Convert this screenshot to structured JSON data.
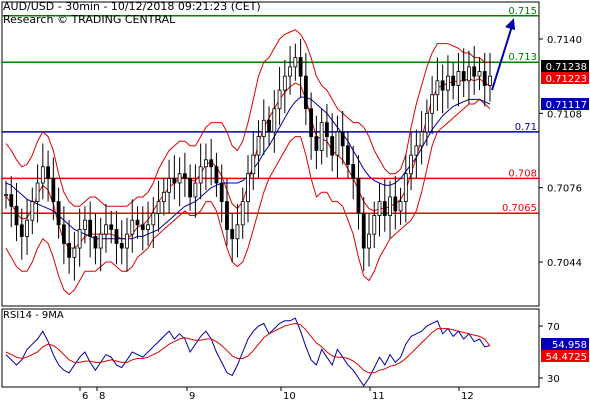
{
  "header": {
    "title": "AUD/USD - 30min - 10/12/2018 09:21:23 (CET)",
    "subtitle": "Research © TRADING CENTRAL"
  },
  "rsi_panel": {
    "title": "RSI14 - 9MA"
  },
  "colors": {
    "resistance": "#008000",
    "pivot": "#0000aa",
    "support": "#ee0000",
    "bollinger": "#dd0000",
    "moving_average": "#0000aa",
    "candles": "#000000",
    "arrow": "#0000aa",
    "rsi_line": "#0000aa",
    "rsi_ma": "#dd0000"
  },
  "chart_data": [
    {
      "type": "candlestick",
      "title": "AUD/USD - 30min - 10/12/2018 09:21:23 (CET)",
      "y_ticks": [
        "0.7140",
        "0.7108",
        "0.7076",
        "0.7044"
      ],
      "x_ticks": [
        "6",
        "8",
        "9",
        "10",
        "11",
        "12"
      ],
      "levels": [
        {
          "value": 0.715,
          "label": "0.715",
          "role": "resistance",
          "color": "#008000"
        },
        {
          "value": 0.713,
          "label": "0.713",
          "role": "resistance",
          "color": "#008000"
        },
        {
          "value": 0.71,
          "label": "0.71",
          "role": "pivot",
          "color": "#0000aa"
        },
        {
          "value": 0.708,
          "label": "0.708",
          "role": "support",
          "color": "#ee0000"
        },
        {
          "value": 0.7065,
          "label": "0.7065",
          "role": "support",
          "color": "#ee0000"
        }
      ],
      "price_tags": [
        {
          "value": 0.71238,
          "label": "0.71238",
          "bg": "#000000",
          "fg": "#ffffff"
        },
        {
          "value": 0.71223,
          "label": "0.71223",
          "bg": "#ee0000",
          "fg": "#ffffff"
        },
        {
          "value": 0.71117,
          "label": "0.71117",
          "bg": "#0000aa",
          "fg": "#ffffff"
        }
      ],
      "forecast_arrow": {
        "from": 0.7118,
        "to": 0.7149
      },
      "close_series": [
        0.7073,
        0.7068,
        0.706,
        0.7055,
        0.7062,
        0.707,
        0.7078,
        0.7085,
        0.708,
        0.707,
        0.706,
        0.7052,
        0.7046,
        0.705,
        0.7058,
        0.7062,
        0.7055,
        0.705,
        0.7056,
        0.706,
        0.7058,
        0.7052,
        0.705,
        0.7056,
        0.7062,
        0.706,
        0.7058,
        0.706,
        0.7065,
        0.707,
        0.7074,
        0.708,
        0.7078,
        0.7082,
        0.708,
        0.7072,
        0.7078,
        0.7085,
        0.7088,
        0.7085,
        0.7078,
        0.707,
        0.7058,
        0.7054,
        0.706,
        0.707,
        0.7082,
        0.709,
        0.7098,
        0.7105,
        0.71,
        0.711,
        0.7118,
        0.7124,
        0.7128,
        0.7132,
        0.7124,
        0.711,
        0.7098,
        0.7092,
        0.7104,
        0.7098,
        0.709,
        0.71,
        0.7094,
        0.7086,
        0.708,
        0.7065,
        0.705,
        0.7056,
        0.7064,
        0.707,
        0.7064,
        0.7072,
        0.7066,
        0.707,
        0.7082,
        0.709,
        0.7094,
        0.71,
        0.7108,
        0.7116,
        0.7122,
        0.7118,
        0.7124,
        0.712,
        0.7126,
        0.7122,
        0.7128,
        0.7124,
        0.7126,
        0.712,
        0.7124
      ],
      "bollinger_upper": [
        0.7095,
        0.7092,
        0.7088,
        0.7085,
        0.7086,
        0.709,
        0.7096,
        0.71,
        0.7098,
        0.7092,
        0.7082,
        0.7074,
        0.707,
        0.7068,
        0.7068,
        0.707,
        0.7072,
        0.7072,
        0.707,
        0.7068,
        0.7068,
        0.7068,
        0.7068,
        0.7068,
        0.707,
        0.7072,
        0.7072,
        0.7074,
        0.7078,
        0.7084,
        0.7088,
        0.7092,
        0.7094,
        0.7096,
        0.7096,
        0.7094,
        0.7094,
        0.7098,
        0.7102,
        0.7104,
        0.7104,
        0.7104,
        0.71,
        0.7094,
        0.7092,
        0.7096,
        0.7104,
        0.7114,
        0.7124,
        0.713,
        0.7132,
        0.7136,
        0.714,
        0.7142,
        0.7143,
        0.7144,
        0.7142,
        0.7138,
        0.7132,
        0.7124,
        0.712,
        0.7118,
        0.7114,
        0.711,
        0.7108,
        0.7106,
        0.7104,
        0.7104,
        0.7102,
        0.7098,
        0.7092,
        0.7088,
        0.7084,
        0.7082,
        0.7082,
        0.7084,
        0.709,
        0.7102,
        0.7112,
        0.712,
        0.7128,
        0.7134,
        0.7138,
        0.7138,
        0.7138,
        0.7137,
        0.7136,
        0.7134,
        0.7134,
        0.7132,
        0.7132,
        0.713,
        0.713
      ],
      "bollinger_lower": [
        0.705,
        0.7046,
        0.7042,
        0.704,
        0.704,
        0.7044,
        0.705,
        0.7054,
        0.7052,
        0.7046,
        0.7038,
        0.7032,
        0.703,
        0.7032,
        0.7036,
        0.704,
        0.704,
        0.704,
        0.7042,
        0.7044,
        0.7044,
        0.7042,
        0.704,
        0.704,
        0.7042,
        0.7046,
        0.7048,
        0.705,
        0.7054,
        0.7056,
        0.7058,
        0.706,
        0.7062,
        0.7064,
        0.7066,
        0.7064,
        0.7064,
        0.7066,
        0.707,
        0.707,
        0.7066,
        0.7058,
        0.705,
        0.7044,
        0.7042,
        0.7044,
        0.705,
        0.7058,
        0.7066,
        0.7074,
        0.708,
        0.7084,
        0.7088,
        0.7092,
        0.7096,
        0.7098,
        0.7098,
        0.709,
        0.708,
        0.7072,
        0.7074,
        0.7074,
        0.707,
        0.707,
        0.7068,
        0.7062,
        0.7056,
        0.7046,
        0.7038,
        0.7036,
        0.704,
        0.7046,
        0.705,
        0.7054,
        0.7056,
        0.7058,
        0.706,
        0.7062,
        0.7066,
        0.7074,
        0.7084,
        0.7094,
        0.71,
        0.7102,
        0.7104,
        0.7106,
        0.7108,
        0.711,
        0.7112,
        0.7112,
        0.7114,
        0.7112,
        0.711
      ],
      "moving_average": [
        0.7078,
        0.7077,
        0.7075,
        0.7073,
        0.7071,
        0.707,
        0.7069,
        0.7068,
        0.7067,
        0.7066,
        0.7064,
        0.7062,
        0.706,
        0.7058,
        0.7057,
        0.7056,
        0.7055,
        0.7054,
        0.7054,
        0.7054,
        0.7054,
        0.7054,
        0.7054,
        0.7054,
        0.7054,
        0.7055,
        0.7055,
        0.7056,
        0.7057,
        0.7058,
        0.706,
        0.7062,
        0.7064,
        0.7066,
        0.7068,
        0.7069,
        0.707,
        0.7072,
        0.7074,
        0.7076,
        0.7077,
        0.7078,
        0.7078,
        0.7078,
        0.7078,
        0.7079,
        0.7081,
        0.7084,
        0.7087,
        0.7091,
        0.7094,
        0.7098,
        0.7102,
        0.7106,
        0.711,
        0.7113,
        0.7115,
        0.7115,
        0.7114,
        0.7112,
        0.711,
        0.7108,
        0.7105,
        0.7102,
        0.7099,
        0.7096,
        0.7092,
        0.7088,
        0.7084,
        0.7081,
        0.7079,
        0.7078,
        0.7077,
        0.7077,
        0.7078,
        0.708,
        0.7083,
        0.7086,
        0.7089,
        0.7093,
        0.7097,
        0.7101,
        0.7104,
        0.7107,
        0.7109,
        0.7111,
        0.7112,
        0.7113,
        0.7114,
        0.7114,
        0.7114,
        0.7113,
        0.7112
      ]
    },
    {
      "type": "line",
      "title": "RSI14 - 9MA",
      "y_ticks": [
        "70",
        "30"
      ],
      "ylim": [
        20,
        80
      ],
      "series": [
        {
          "name": "RSI14",
          "color": "#0000aa",
          "values": [
            48,
            44,
            40,
            44,
            52,
            56,
            60,
            66,
            58,
            48,
            40,
            36,
            34,
            40,
            46,
            50,
            42,
            36,
            42,
            48,
            46,
            40,
            38,
            44,
            50,
            48,
            46,
            50,
            54,
            58,
            62,
            66,
            60,
            64,
            60,
            50,
            56,
            62,
            66,
            60,
            50,
            42,
            34,
            32,
            40,
            50,
            60,
            66,
            70,
            72,
            64,
            68,
            72,
            74,
            74,
            76,
            66,
            54,
            44,
            40,
            52,
            46,
            40,
            52,
            46,
            40,
            36,
            30,
            24,
            30,
            38,
            46,
            40,
            48,
            42,
            46,
            56,
            62,
            64,
            66,
            70,
            72,
            74,
            64,
            68,
            62,
            66,
            60,
            64,
            58,
            60,
            54,
            55
          ]
        },
        {
          "name": "9MA",
          "color": "#dd0000",
          "values": [
            50,
            48,
            46,
            45,
            46,
            48,
            50,
            54,
            56,
            55,
            52,
            48,
            44,
            42,
            42,
            43,
            43,
            42,
            42,
            43,
            44,
            43,
            42,
            42,
            44,
            45,
            45,
            46,
            48,
            50,
            53,
            56,
            58,
            60,
            61,
            60,
            59,
            59,
            60,
            60,
            58,
            55,
            51,
            47,
            45,
            45,
            47,
            51,
            56,
            61,
            64,
            66,
            68,
            70,
            71,
            72,
            71,
            67,
            62,
            57,
            54,
            50,
            47,
            46,
            46,
            45,
            43,
            40,
            36,
            34,
            34,
            36,
            37,
            39,
            40,
            42,
            45,
            49,
            53,
            57,
            61,
            65,
            68,
            68,
            68,
            67,
            66,
            65,
            64,
            63,
            62,
            60,
            54.5
          ]
        }
      ],
      "value_tags": [
        {
          "value": 54.958,
          "label": "54.958",
          "bg": "#0000aa",
          "fg": "#ffffff"
        },
        {
          "value": 54.4725,
          "label": "54.4725",
          "bg": "#ee0000",
          "fg": "#ffffff"
        }
      ]
    }
  ]
}
